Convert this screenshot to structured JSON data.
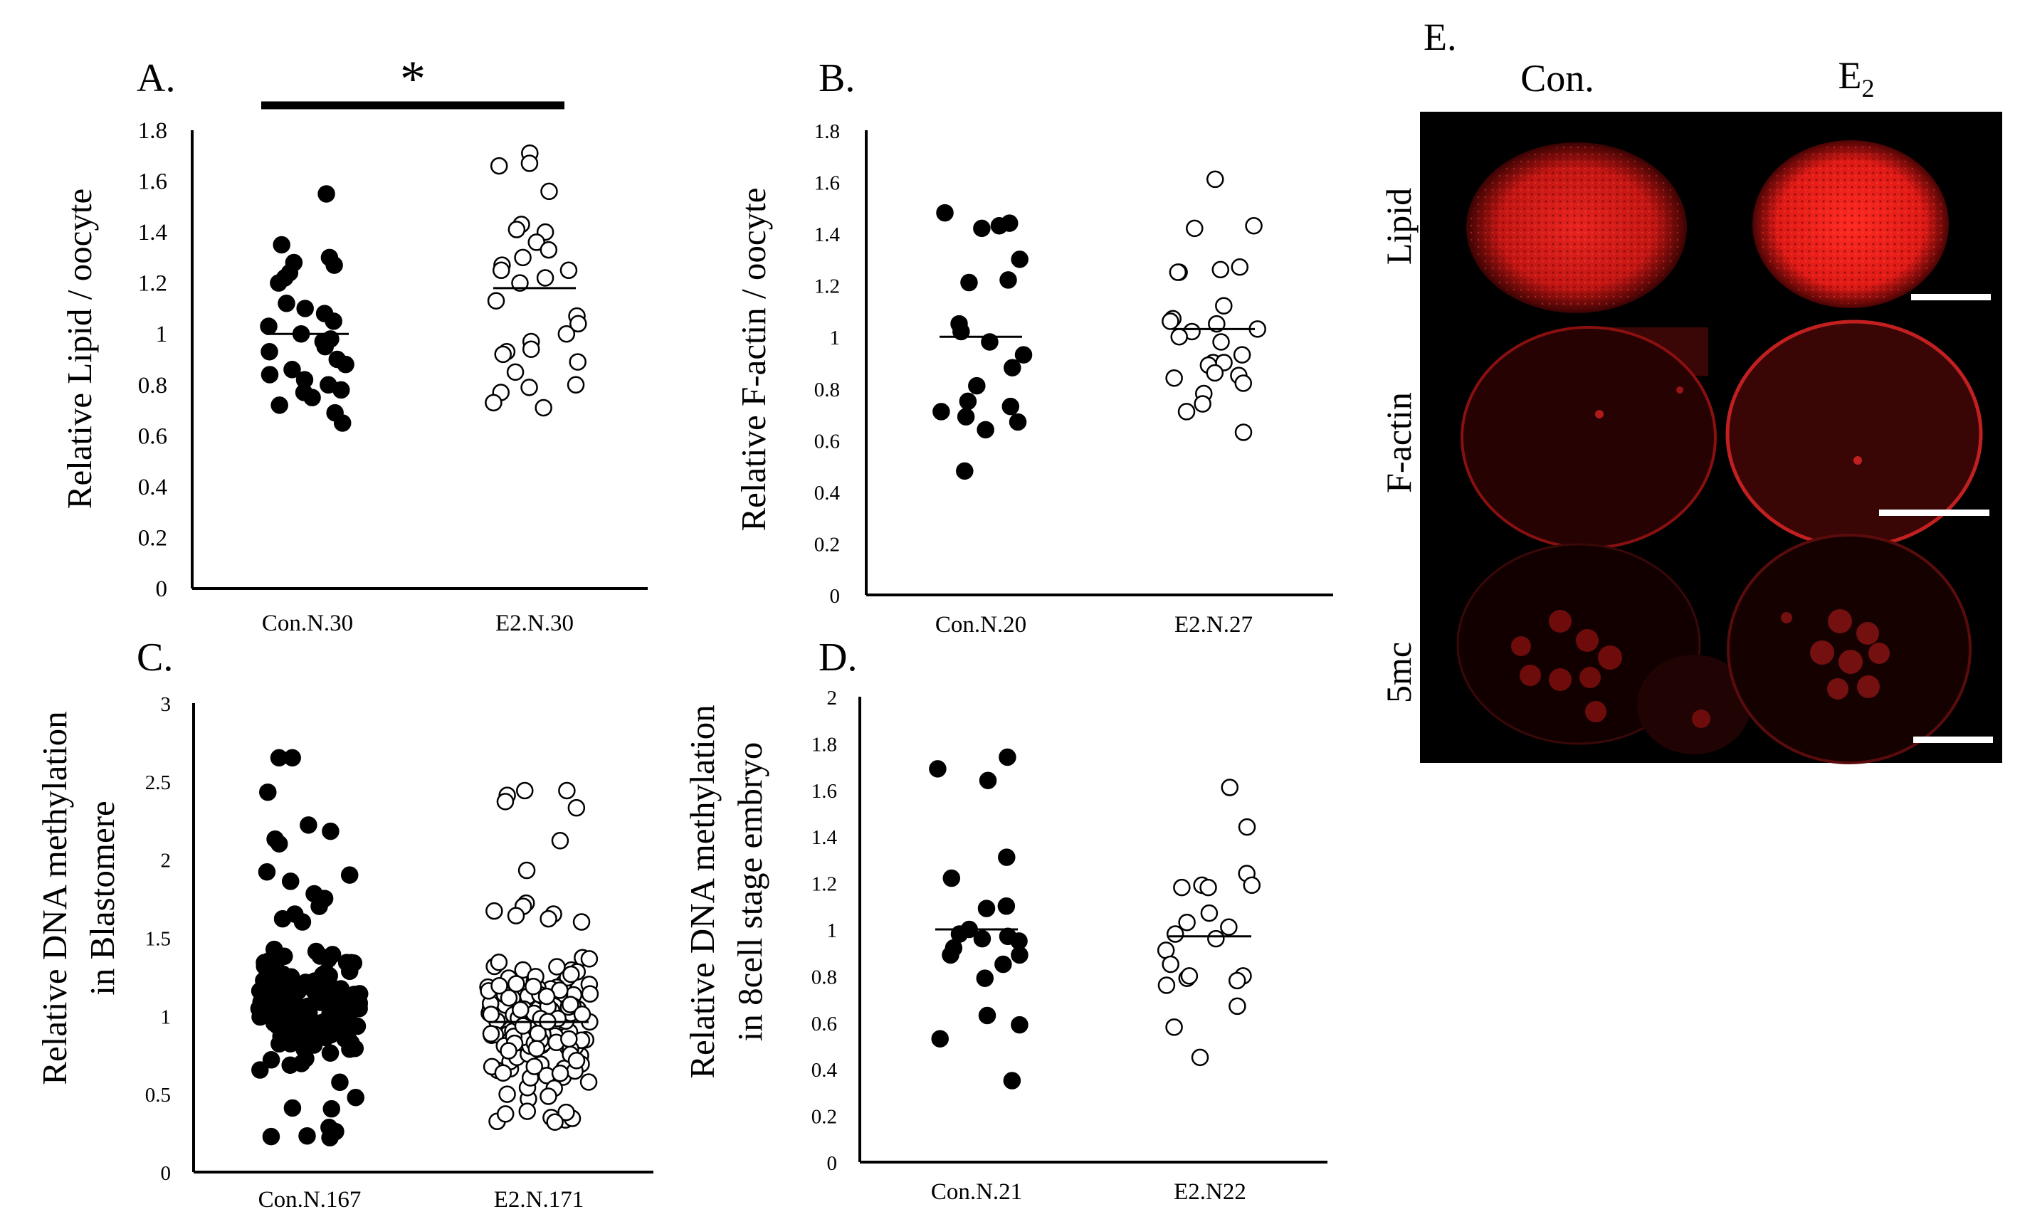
{
  "chart_data": [
    {
      "id": "A",
      "type": "scatter",
      "panel_label": "A.",
      "ylabel": "Relative Lipid / oocyte",
      "ylim": [
        0,
        1.8
      ],
      "yticks": [
        "0",
        "0.2",
        "0.4",
        "0.6",
        "0.8",
        "1",
        "1.2",
        "1.4",
        "1.6",
        "1.8"
      ],
      "categories": [
        "Con.N.30",
        "E2.N.30"
      ],
      "significance": "*",
      "series": [
        {
          "name": "Con.N.30",
          "marker": "filled",
          "mean": 1.0,
          "values": [
            1.55,
            1.35,
            1.3,
            1.28,
            1.27,
            1.24,
            1.22,
            1.2,
            1.12,
            1.1,
            1.08,
            1.05,
            1.03,
            1.0,
            0.98,
            0.97,
            0.95,
            0.93,
            0.9,
            0.88,
            0.86,
            0.84,
            0.82,
            0.8,
            0.78,
            0.77,
            0.75,
            0.72,
            0.69,
            0.65
          ]
        },
        {
          "name": "E2.N.30",
          "marker": "open",
          "mean": 1.18,
          "values": [
            1.71,
            1.67,
            1.66,
            1.56,
            1.43,
            1.41,
            1.4,
            1.36,
            1.33,
            1.3,
            1.27,
            1.25,
            1.25,
            1.22,
            1.2,
            1.13,
            1.07,
            1.04,
            1.0,
            0.97,
            0.94,
            0.93,
            0.92,
            0.89,
            0.85,
            0.8,
            0.79,
            0.77,
            0.73,
            0.71
          ]
        }
      ]
    },
    {
      "id": "B",
      "type": "scatter",
      "panel_label": "B.",
      "ylabel": "Relative F-actin / oocyte",
      "ylim": [
        0,
        1.8
      ],
      "yticks": [
        "0",
        "0.2",
        "0.4",
        "0.6",
        "0.8",
        "1",
        "1.2",
        "1.4",
        "1.6",
        "1.8"
      ],
      "categories": [
        "Con.N.20",
        "E2.N.27"
      ],
      "series": [
        {
          "name": "Con.N.20",
          "marker": "filled",
          "mean": 1.0,
          "values": [
            1.48,
            1.44,
            1.43,
            1.42,
            1.3,
            1.22,
            1.21,
            1.05,
            1.02,
            0.98,
            0.93,
            0.88,
            0.81,
            0.75,
            0.73,
            0.71,
            0.69,
            0.67,
            0.64,
            0.48
          ]
        },
        {
          "name": "E2.N.27",
          "marker": "open",
          "mean": 1.03,
          "values": [
            1.61,
            1.43,
            1.42,
            1.27,
            1.26,
            1.25,
            1.25,
            1.12,
            1.07,
            1.06,
            1.05,
            1.03,
            1.02,
            1.0,
            0.98,
            0.93,
            0.9,
            0.9,
            0.89,
            0.86,
            0.85,
            0.84,
            0.82,
            0.78,
            0.74,
            0.71,
            0.63
          ]
        }
      ]
    },
    {
      "id": "C",
      "type": "scatter",
      "panel_label": "C.",
      "ylabel": "Relative DNA methylation",
      "ylabel2": "in Blastomere",
      "ylim": [
        0,
        3
      ],
      "yticks": [
        "0",
        "0.5",
        "1",
        "1.5",
        "2",
        "2.5",
        "3"
      ],
      "categories": [
        "Con.N.167",
        "E2.N.171"
      ],
      "series": [
        {
          "name": "Con.N.167",
          "marker": "filled",
          "mean": 1.0,
          "n": 167,
          "min": 0.22,
          "max": 2.65,
          "highlights": [
            2.65,
            2.43,
            2.22,
            2.18,
            2.13,
            2.1,
            1.92,
            1.9,
            1.86,
            1.78,
            1.75,
            1.7,
            1.65,
            1.62,
            1.6
          ],
          "core_range": [
            0.5,
            1.55
          ]
        },
        {
          "name": "E2.N.171",
          "marker": "open",
          "mean": 0.96,
          "n": 171,
          "min": 0.32,
          "max": 2.44,
          "highlights": [
            2.44,
            2.41,
            2.37,
            2.33,
            2.12,
            1.93,
            1.72,
            1.7,
            1.67,
            1.65,
            1.64,
            1.62,
            1.6
          ],
          "core_range": [
            0.4,
            1.5
          ]
        }
      ]
    },
    {
      "id": "D",
      "type": "scatter",
      "panel_label": "D.",
      "ylabel": "Relative DNA methylation",
      "ylabel2": "in 8cell stage embryo",
      "ylim": [
        0,
        2
      ],
      "yticks": [
        "0",
        "0.2",
        "0.4",
        "0.6",
        "0.8",
        "1",
        "1.2",
        "1.4",
        "1.6",
        "1.8",
        "2"
      ],
      "categories": [
        "Con.N.21",
        "E2.N22"
      ],
      "series": [
        {
          "name": "Con.N.21",
          "marker": "filled",
          "mean": 1.0,
          "values": [
            1.74,
            1.69,
            1.64,
            1.31,
            1.22,
            1.1,
            1.09,
            1.0,
            0.98,
            0.97,
            0.96,
            0.95,
            0.92,
            0.89,
            0.89,
            0.85,
            0.79,
            0.63,
            0.59,
            0.53,
            0.35
          ]
        },
        {
          "name": "E2.N22",
          "marker": "open",
          "mean": 0.97,
          "values": [
            1.61,
            1.44,
            1.24,
            1.19,
            1.19,
            1.18,
            1.18,
            1.07,
            1.03,
            1.01,
            0.98,
            0.96,
            0.91,
            0.85,
            0.8,
            0.79,
            0.78,
            0.76,
            0.67,
            0.58,
            0.45,
            0.8
          ]
        }
      ]
    }
  ],
  "panel_e": {
    "label": "E.",
    "columns": [
      "Con.",
      "E"
    ],
    "e2_subscript": "2",
    "rows": [
      "Lipid",
      "F-actin",
      "5mc"
    ],
    "stain_color": "#ff2a2a"
  }
}
